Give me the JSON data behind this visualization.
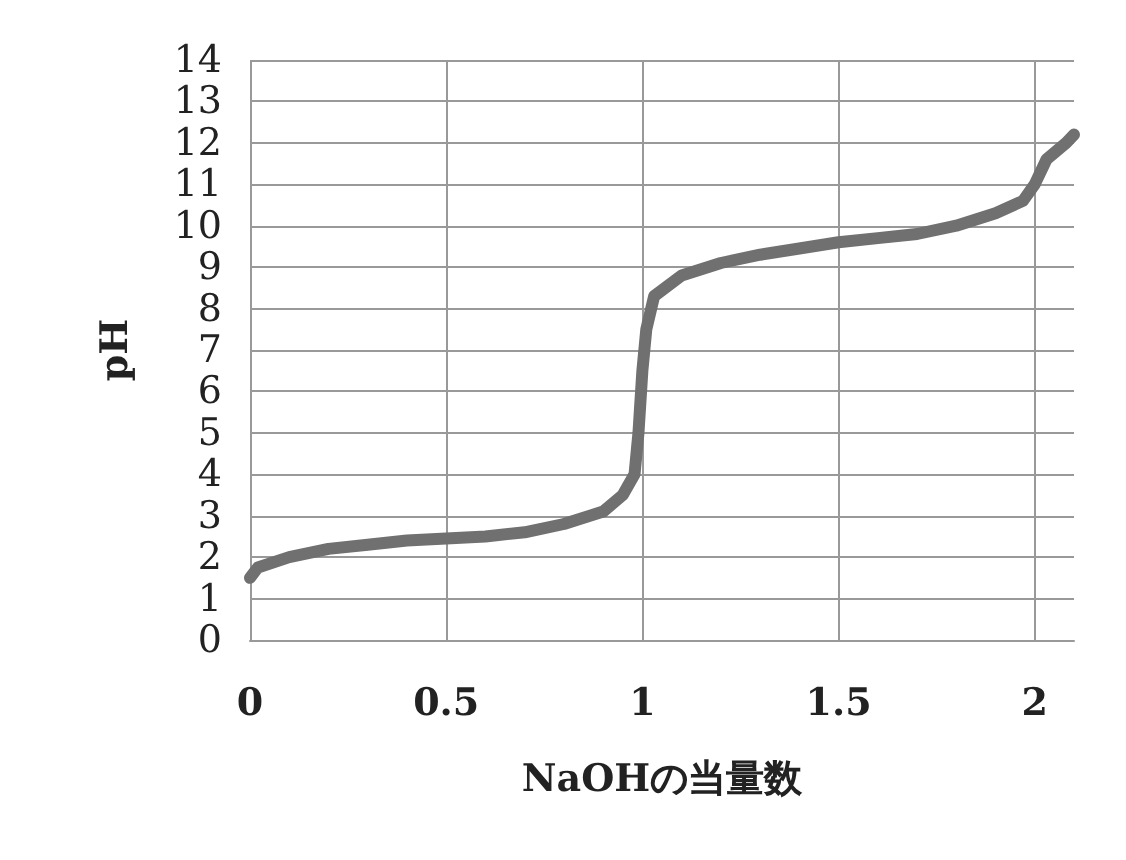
{
  "chart_data": {
    "type": "line",
    "xlabel": "NaOHの当量数",
    "ylabel": "pH",
    "xlim": [
      0,
      2.1
    ],
    "xticks": [
      0,
      0.5,
      1,
      1.5,
      2
    ],
    "ylim": [
      0,
      14
    ],
    "yticks": [
      0,
      1,
      2,
      3,
      4,
      5,
      6,
      7,
      8,
      9,
      10,
      11,
      12,
      13,
      14
    ],
    "grid": true,
    "marker": "none",
    "line_style": "solid",
    "series": [
      {
        "color": "#707070",
        "x": [
          0,
          0.02,
          0.1,
          0.2,
          0.3,
          0.4,
          0.5,
          0.6,
          0.7,
          0.8,
          0.9,
          0.95,
          0.98,
          0.99,
          1.0,
          1.01,
          1.03,
          1.1,
          1.2,
          1.3,
          1.4,
          1.5,
          1.6,
          1.7,
          1.8,
          1.9,
          1.97,
          2.0,
          2.03,
          2.08,
          2.1
        ],
        "values": [
          1.5,
          1.75,
          2.0,
          2.2,
          2.3,
          2.4,
          2.45,
          2.5,
          2.6,
          2.8,
          3.1,
          3.5,
          4.0,
          5.0,
          6.5,
          7.5,
          8.3,
          8.8,
          9.1,
          9.3,
          9.45,
          9.6,
          9.7,
          9.8,
          10.0,
          10.3,
          10.6,
          11.0,
          11.6,
          12.0,
          12.2
        ]
      }
    ]
  }
}
